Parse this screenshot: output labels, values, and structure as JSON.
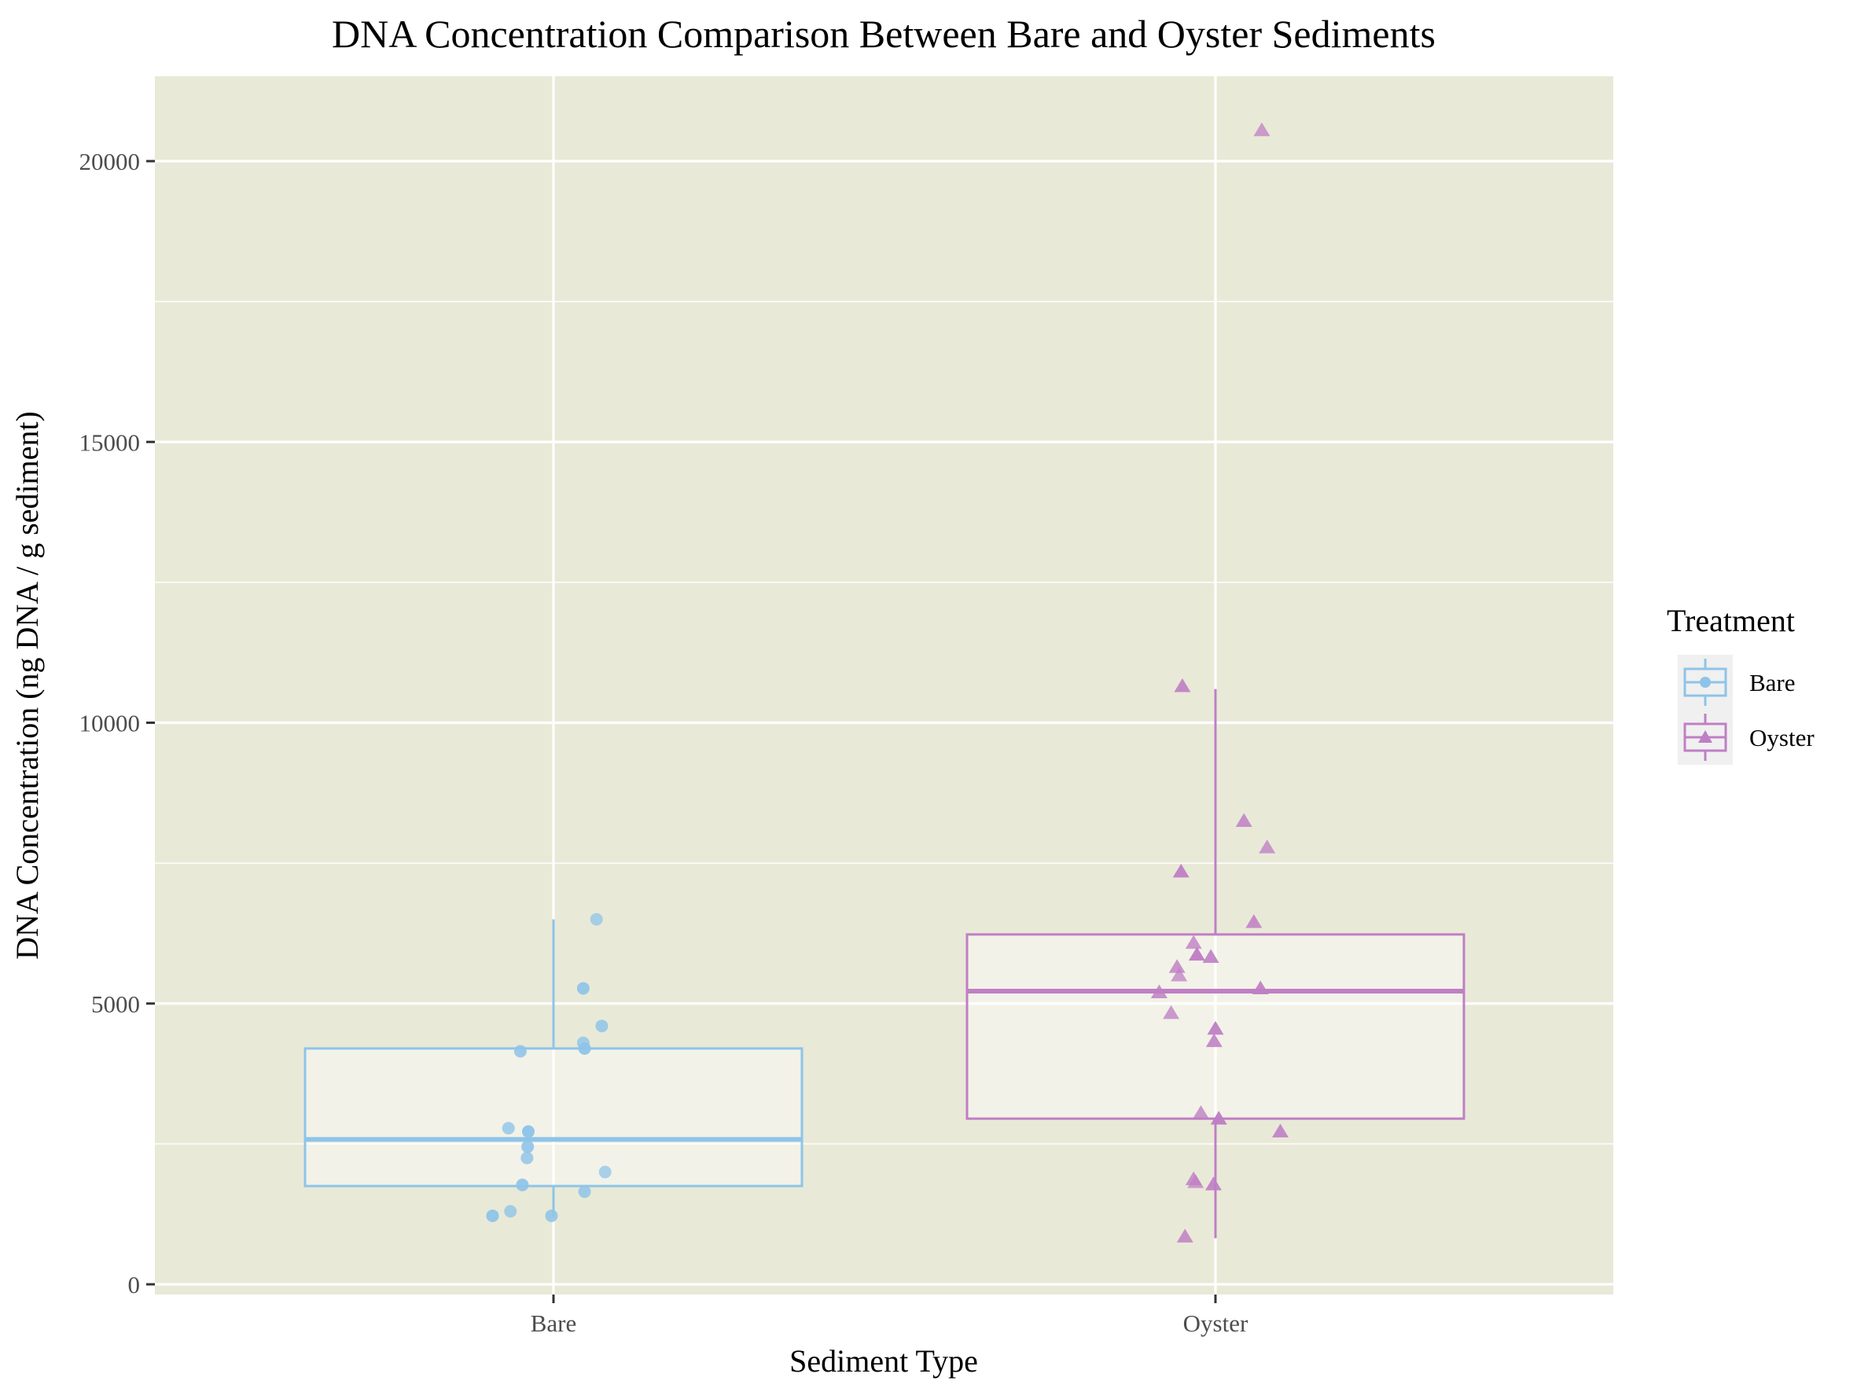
{
  "chart_data": {
    "type": "box",
    "title": "DNA Concentration Comparison Between Bare and Oyster Sediments",
    "xlabel": "Sediment Type",
    "ylabel": "DNA Concentration (ng DNA / g sediment)",
    "categories": [
      "Bare",
      "Oyster"
    ],
    "ylim": [
      -200,
      21500
    ],
    "yticks": [
      0,
      5000,
      10000,
      15000,
      20000
    ],
    "yticks_labels": [
      "0",
      "5000",
      "10000",
      "15000",
      "20000"
    ],
    "grid": true,
    "legend": {
      "title": "Treatment",
      "position": "right",
      "entries": [
        {
          "label": "Bare",
          "color": "#8ec4e8",
          "shape": "circle"
        },
        {
          "label": "Oyster",
          "color": "#bf7fc4",
          "shape": "triangle"
        }
      ]
    },
    "series": [
      {
        "name": "Bare",
        "category": "Bare",
        "color": "#8ec4e8",
        "box": {
          "whisker_low": 1200,
          "q1": 1750,
          "median": 2580,
          "q3": 4200,
          "whisker_high": 6500
        },
        "points": [
          {
            "jitter": 0.065,
            "y": 6500
          },
          {
            "jitter": 0.045,
            "y": 5270
          },
          {
            "jitter": 0.073,
            "y": 4600
          },
          {
            "jitter": 0.045,
            "y": 4300
          },
          {
            "jitter": 0.047,
            "y": 4200
          },
          {
            "jitter": -0.05,
            "y": 4150
          },
          {
            "jitter": -0.068,
            "y": 2780
          },
          {
            "jitter": -0.038,
            "y": 2720
          },
          {
            "jitter": -0.039,
            "y": 2450
          },
          {
            "jitter": -0.04,
            "y": 2250
          },
          {
            "jitter": 0.078,
            "y": 2000
          },
          {
            "jitter": -0.047,
            "y": 1770
          },
          {
            "jitter": 0.047,
            "y": 1650
          },
          {
            "jitter": -0.065,
            "y": 1300
          },
          {
            "jitter": -0.092,
            "y": 1220
          },
          {
            "jitter": -0.003,
            "y": 1220
          }
        ]
      },
      {
        "name": "Oyster",
        "category": "Oyster",
        "color": "#bf7fc4",
        "box": {
          "whisker_low": 820,
          "q1": 2950,
          "median": 5220,
          "q3": 6230,
          "whisker_high": 10600
        },
        "points": [
          {
            "jitter": 0.07,
            "y": 20550
          },
          {
            "jitter": -0.05,
            "y": 10650
          },
          {
            "jitter": 0.043,
            "y": 8250
          },
          {
            "jitter": 0.078,
            "y": 7780
          },
          {
            "jitter": -0.052,
            "y": 7350
          },
          {
            "jitter": 0.058,
            "y": 6450
          },
          {
            "jitter": -0.033,
            "y": 6080
          },
          {
            "jitter": -0.028,
            "y": 5870
          },
          {
            "jitter": -0.007,
            "y": 5830
          },
          {
            "jitter": -0.058,
            "y": 5650
          },
          {
            "jitter": -0.055,
            "y": 5500
          },
          {
            "jitter": 0.068,
            "y": 5270
          },
          {
            "jitter": -0.085,
            "y": 5200
          },
          {
            "jitter": -0.067,
            "y": 4830
          },
          {
            "jitter": 0.0,
            "y": 4550
          },
          {
            "jitter": -0.002,
            "y": 4330
          },
          {
            "jitter": -0.022,
            "y": 3050
          },
          {
            "jitter": 0.005,
            "y": 2950
          },
          {
            "jitter": 0.098,
            "y": 2720
          },
          {
            "jitter": -0.033,
            "y": 1870
          },
          {
            "jitter": -0.03,
            "y": 1820
          },
          {
            "jitter": -0.003,
            "y": 1780
          },
          {
            "jitter": -0.046,
            "y": 850
          }
        ]
      }
    ]
  }
}
